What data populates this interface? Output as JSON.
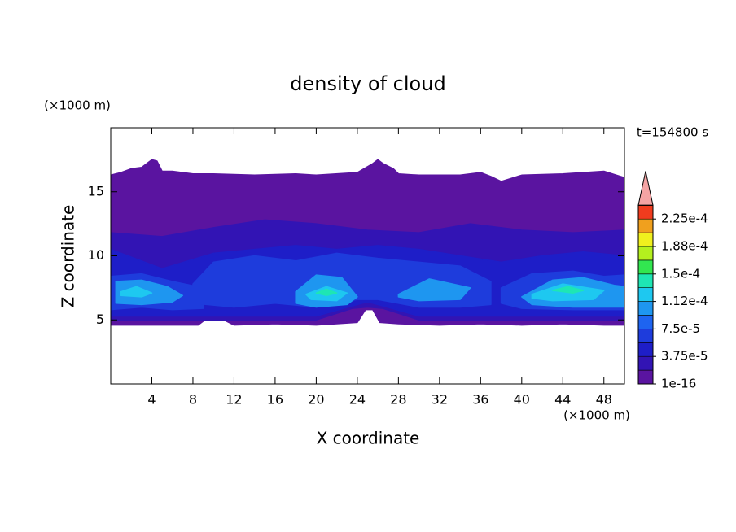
{
  "chart_data": {
    "type": "contour",
    "title": "density of cloud",
    "xlabel": "X coordinate",
    "ylabel": "Z coordinate",
    "x_unit": "(×1000 m)",
    "y_unit": "(×1000 m)",
    "annotation": "t=154800 s",
    "xlim": [
      0,
      50
    ],
    "ylim": [
      0,
      20
    ],
    "xticks": [
      4,
      8,
      12,
      16,
      20,
      24,
      28,
      32,
      36,
      40,
      44,
      48
    ],
    "yticks": [
      5,
      10,
      15
    ],
    "colorbar": {
      "levels": [
        1e-16,
        1.875e-05,
        3.75e-05,
        5.625e-05,
        7.5e-05,
        9.375e-05,
        0.0001125,
        0.00013125,
        0.00015,
        0.00016875,
        0.0001875,
        0.00020625,
        0.000225,
        0.00024375
      ],
      "colors": [
        "#5a14a0",
        "#3214b4",
        "#1e1ec8",
        "#1e3cdc",
        "#1e64f0",
        "#1e96f0",
        "#1ec8f0",
        "#1ee6b4",
        "#32e650",
        "#b4f01e",
        "#f0f01e",
        "#f0a01e",
        "#f03c1e"
      ],
      "ticks": [
        {
          "value": 1e-16,
          "label": "1e-16"
        },
        {
          "value": 3.75e-05,
          "label": "3.75e-5"
        },
        {
          "value": 7.5e-05,
          "label": "7.5e-5"
        },
        {
          "value": 0.0001125,
          "label": "1.12e-4"
        },
        {
          "value": 0.00015,
          "label": "1.5e-4"
        },
        {
          "value": 0.0001875,
          "label": "1.88e-4"
        },
        {
          "value": 0.000225,
          "label": "2.25e-4"
        }
      ],
      "extend_color": "#f4a4a4"
    },
    "regions": [
      {
        "level": 1e-16,
        "x": [
          0,
          1,
          2,
          3,
          4,
          4.5,
          5,
          6,
          8,
          10,
          14,
          18,
          20,
          24,
          25.5,
          26,
          26.5,
          27.5,
          28,
          30,
          34,
          36,
          37,
          38,
          40,
          44,
          48,
          50,
          50,
          48,
          44,
          40,
          36,
          32,
          28,
          26.2,
          25.5,
          24.8,
          24,
          20,
          16,
          12,
          10.5,
          9.5,
          8.5,
          4,
          0
        ],
        "z": [
          16.3,
          16.5,
          16.8,
          16.9,
          17.5,
          17.4,
          16.6,
          16.6,
          16.4,
          16.4,
          16.3,
          16.4,
          16.3,
          16.5,
          17.2,
          17.5,
          17.2,
          16.8,
          16.4,
          16.3,
          16.3,
          16.5,
          16.2,
          15.8,
          16.3,
          16.4,
          16.6,
          16.1,
          4.6,
          4.6,
          4.7,
          4.6,
          4.7,
          4.6,
          4.7,
          4.8,
          5.8,
          5.8,
          4.8,
          4.6,
          4.7,
          4.6,
          5.2,
          5.2,
          4.6,
          4.6,
          4.6
        ]
      },
      {
        "level": 1.875e-05,
        "x": [
          0,
          5,
          10,
          15,
          20,
          25,
          30,
          35,
          40,
          45,
          50,
          50,
          40,
          30,
          26.5,
          25,
          23.5,
          20,
          10,
          0
        ],
        "z": [
          11.8,
          11.5,
          12.2,
          12.8,
          12.5,
          12.0,
          11.8,
          12.5,
          12.0,
          11.8,
          12.0,
          5.0,
          5.0,
          5.0,
          5.9,
          6.0,
          5.9,
          5.0,
          5.0,
          5.0
        ]
      },
      {
        "level": 3.75e-05,
        "x": [
          0,
          5,
          10,
          14,
          18,
          22,
          26,
          30,
          34,
          38,
          42,
          46,
          50,
          50,
          40,
          30,
          26,
          25,
          24,
          20,
          10,
          0
        ],
        "z": [
          10.5,
          9.0,
          10.2,
          10.5,
          10.8,
          10.5,
          10.8,
          10.5,
          10.0,
          9.5,
          10.0,
          10.3,
          10.0,
          5.3,
          5.3,
          5.3,
          6.2,
          6.4,
          6.2,
          5.3,
          5.3,
          5.3
        ]
      },
      {
        "level": 5.625e-05,
        "x": [
          0,
          3,
          6,
          9,
          9,
          6,
          3,
          0
        ],
        "z": [
          8.4,
          8.6,
          8.0,
          7.5,
          5.9,
          5.8,
          6.0,
          5.8
        ]
      },
      {
        "level": 5.625e-05,
        "x": [
          8,
          10,
          14,
          18,
          22,
          26,
          30,
          34,
          37,
          37,
          34,
          30,
          26,
          24,
          20,
          16,
          12,
          8
        ],
        "z": [
          7.8,
          9.5,
          10.0,
          9.6,
          10.2,
          9.8,
          9.5,
          9.2,
          8.0,
          6.2,
          6.0,
          6.0,
          6.6,
          6.6,
          6.0,
          6.3,
          6.0,
          6.3
        ]
      },
      {
        "level": 5.625e-05,
        "x": [
          38,
          41,
          45,
          48,
          50,
          50,
          45,
          40,
          38
        ],
        "z": [
          7.5,
          8.6,
          8.8,
          8.4,
          8.5,
          5.8,
          5.8,
          5.9,
          6.3
        ]
      },
      {
        "level": 9.375e-05,
        "x": [
          0.5,
          3,
          5.5,
          7,
          6,
          3,
          0.5
        ],
        "z": [
          8.0,
          8.1,
          7.6,
          6.9,
          6.4,
          6.2,
          6.3
        ]
      },
      {
        "level": 9.375e-05,
        "x": [
          18,
          20,
          22.5,
          24,
          23,
          20,
          18
        ],
        "z": [
          7.2,
          8.5,
          8.3,
          6.8,
          6.2,
          6.0,
          6.3
        ]
      },
      {
        "level": 9.375e-05,
        "x": [
          28,
          31,
          35,
          34,
          30,
          28
        ],
        "z": [
          7.0,
          8.2,
          7.5,
          6.6,
          6.5,
          6.8
        ]
      },
      {
        "level": 9.375e-05,
        "x": [
          40,
          43,
          46,
          49,
          50,
          50,
          45,
          41
        ],
        "z": [
          6.8,
          8.1,
          8.3,
          7.7,
          7.6,
          6.0,
          6.0,
          6.2
        ]
      },
      {
        "level": 0.0001125,
        "x": [
          1,
          2.5,
          4,
          3,
          1
        ],
        "z": [
          7.2,
          7.6,
          7.1,
          6.8,
          6.9
        ]
      },
      {
        "level": 0.0001125,
        "x": [
          19,
          21,
          23,
          22,
          19.5
        ],
        "z": [
          7.0,
          7.6,
          7.1,
          6.5,
          6.6
        ]
      },
      {
        "level": 0.0001125,
        "x": [
          41,
          44,
          48,
          47,
          43,
          41
        ],
        "z": [
          7.0,
          7.8,
          7.3,
          6.6,
          6.5,
          6.7
        ]
      },
      {
        "level": 0.00013125,
        "x": [
          20,
          21,
          22,
          21
        ],
        "z": [
          7.1,
          7.4,
          7.1,
          6.9
        ]
      },
      {
        "level": 0.00013125,
        "x": [
          43,
          44.5,
          46,
          45
        ],
        "z": [
          7.3,
          7.6,
          7.3,
          7.1
        ]
      }
    ]
  }
}
